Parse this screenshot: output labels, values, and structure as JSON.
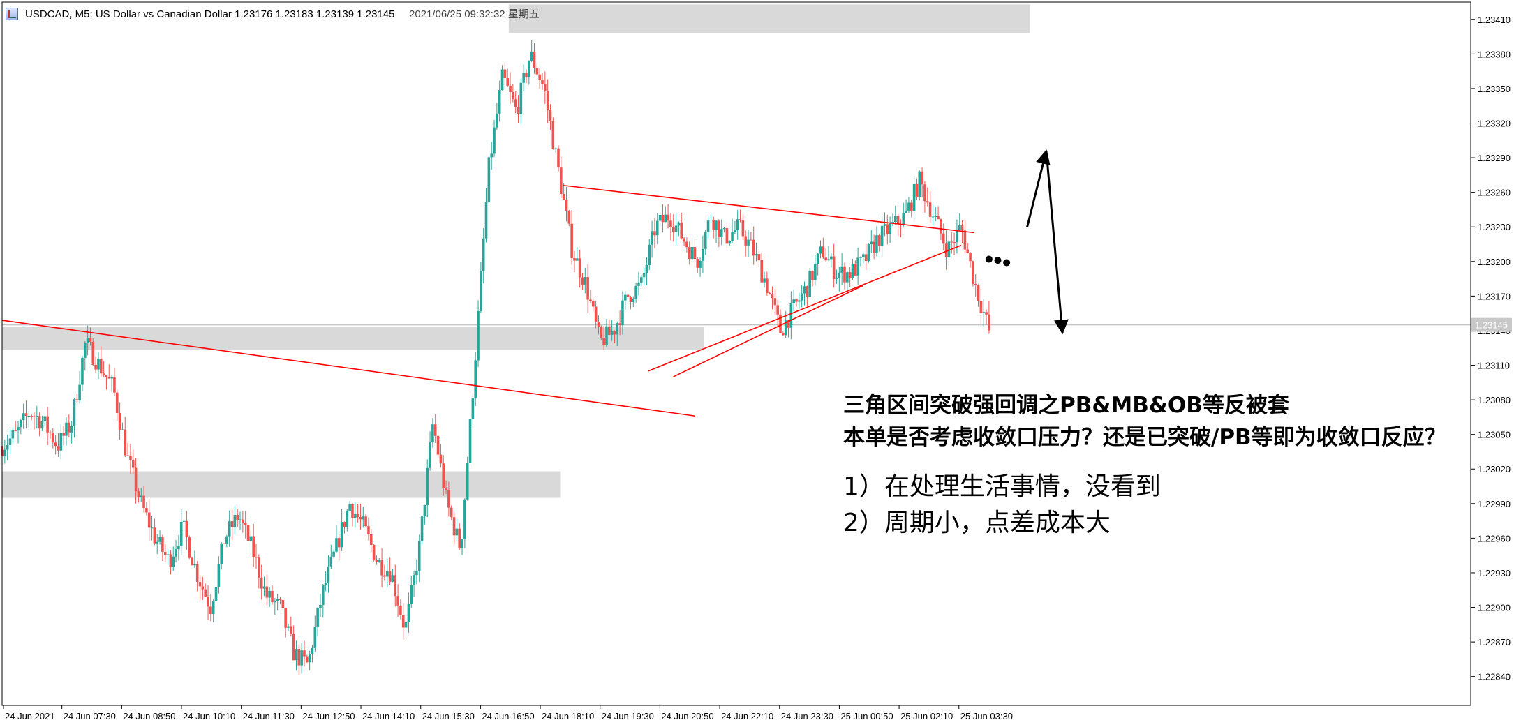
{
  "header": {
    "symbol_line": "USDCAD, M5:  US Dollar vs Canadian Dollar  1.23176 1.23183 1.23139 1.23145",
    "timestamp": "2021/06/25  09:32:32  星期五"
  },
  "annotation": {
    "title_line1": "三角区间突破强回调之PB&MB&OB等反被套",
    "title_line2": "本单是否考虑收敛口压力？还是已突破/PB等即为收敛口反应？",
    "note1": "1）在处理生活事情，没看到",
    "note2": "2）周期小，点差成本大"
  },
  "colors": {
    "bull": "#26a69a",
    "bear": "#ef5350",
    "line": "#ff0000",
    "zone": "#d9d9d9",
    "axis": "#000000"
  },
  "chart_data": {
    "type": "candlestick",
    "symbol": "USDCAD",
    "timeframe": "M5",
    "ylim": [
      1.22815,
      1.23425
    ],
    "y_ticks": [
      1.2341,
      1.2338,
      1.2335,
      1.2332,
      1.2329,
      1.2326,
      1.2323,
      1.232,
      1.2317,
      1.2314,
      1.2311,
      1.2308,
      1.2305,
      1.2302,
      1.2299,
      1.2296,
      1.2293,
      1.229,
      1.2287,
      1.2284
    ],
    "y_tick_labels": [
      "1.23410",
      "1.23380",
      "1.23350",
      "1.23320",
      "1.23290",
      "1.23260",
      "1.23230",
      "1.23200",
      "1.23170",
      "1.23140",
      "1.23110",
      "1.23080",
      "1.23050",
      "1.23020",
      "1.22990",
      "1.22960",
      "1.22930",
      "1.22900",
      "1.22870",
      "1.22840"
    ],
    "x_tick_labels": [
      "24 Jun 2021",
      "24 Jun 07:30",
      "24 Jun 08:50",
      "24 Jun 10:10",
      "24 Jun 11:30",
      "24 Jun 12:50",
      "24 Jun 14:10",
      "24 Jun 15:30",
      "24 Jun 16:50",
      "24 Jun 18:10",
      "24 Jun 19:30",
      "24 Jun 20:50",
      "24 Jun 22:10",
      "24 Jun 23:30",
      "25 Jun 00:50",
      "25 Jun 02:10",
      "25 Jun 03:30"
    ],
    "current_price": "1.23145",
    "price_path": [
      1.2304,
      1.2305,
      1.2307,
      1.2306,
      1.2304,
      1.2306,
      1.2313,
      1.2311,
      1.2309,
      1.2303,
      1.2299,
      1.2296,
      1.2294,
      1.2297,
      1.2293,
      1.229,
      1.2296,
      1.2298,
      1.2295,
      1.2291,
      1.229,
      1.2286,
      1.2285,
      1.2291,
      1.2295,
      1.2299,
      1.2297,
      1.2294,
      1.2293,
      1.2288,
      1.2295,
      1.2306,
      1.2299,
      1.2295,
      1.2311,
      1.2328,
      1.2336,
      1.2333,
      1.2338,
      1.2335,
      1.2328,
      1.2321,
      1.2318,
      1.2313,
      1.2314,
      1.2317,
      1.2318,
      1.2323,
      1.2324,
      1.2322,
      1.232,
      1.2324,
      1.2322,
      1.2323,
      1.2321,
      1.2318,
      1.2314,
      1.2316,
      1.2318,
      1.2321,
      1.2319,
      1.2319,
      1.232,
      1.2322,
      1.2323,
      1.2324,
      1.2327,
      1.2324,
      1.2321,
      1.2323,
      1.2318,
      1.2314
    ],
    "zones": [
      {
        "y_low": 1.23398,
        "y_high": 1.23423,
        "x_from": 0.345,
        "x_to": 0.7
      },
      {
        "y_low": 1.23123,
        "y_high": 1.23143,
        "x_from": 0.0,
        "x_to": 0.478
      },
      {
        "y_low": 1.22995,
        "y_high": 1.23018,
        "x_from": 0.0,
        "x_to": 0.38
      }
    ],
    "lines": [
      {
        "from": [
          0.0,
          1.23149
        ],
        "to": [
          0.472,
          1.23066
        ]
      },
      {
        "from": [
          0.382,
          1.23266
        ],
        "to": [
          0.662,
          1.23225
        ]
      },
      {
        "from": [
          0.44,
          1.23105
        ],
        "to": [
          0.653,
          1.23214
        ]
      },
      {
        "from": [
          0.457,
          1.231
        ],
        "to": [
          0.586,
          1.23179
        ]
      }
    ],
    "arrows": [
      {
        "from": [
          0.698,
          1.2323
        ],
        "to": [
          0.711,
          1.23296
        ]
      },
      {
        "from": [
          0.711,
          1.23296
        ],
        "to": [
          0.722,
          1.23138
        ]
      }
    ],
    "dots": [
      [
        0.672,
        1.23202
      ],
      [
        0.678,
        1.23201
      ],
      [
        0.684,
        1.23199
      ]
    ]
  }
}
